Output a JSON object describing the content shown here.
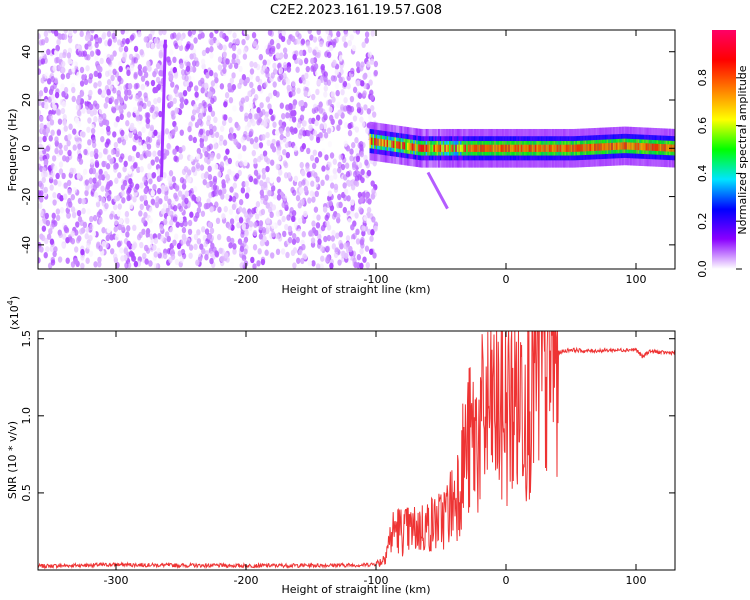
{
  "chart_data": [
    {
      "type": "heatmap",
      "title": "C2E2.2023.161.19.57.G08",
      "xlabel": "Height of straight line (km)",
      "ylabel": "Frequency (Hz)",
      "xlim": [
        -360,
        130
      ],
      "ylim": [
        -50,
        49
      ],
      "xticks": [
        -300,
        -200,
        -100,
        0,
        100
      ],
      "yticks": [
        -40,
        -20,
        0,
        20,
        40
      ],
      "colorbar": {
        "label": "Normalized spectral amplitude",
        "range": [
          0.0,
          1.0
        ],
        "ticks": [
          "0.0",
          "0.2",
          "0.4",
          "0.6",
          "0.8"
        ],
        "colors": [
          "#ffffff",
          "#8a00ff",
          "#0000ff",
          "#00e5ff",
          "#00ff00",
          "#ffff00",
          "#ff7f00",
          "#ff0000",
          "#ff0066"
        ]
      },
      "regions": [
        {
          "name": "noise",
          "x": [
            -360,
            -100
          ],
          "freq": [
            -49,
            49
          ],
          "max_amplitude": 0.1
        },
        {
          "name": "signal",
          "x": [
            -105,
            130
          ],
          "freq_center": [
            3,
            0,
            0,
            0,
            0,
            1,
            0
          ],
          "max_amplitude": 1.0
        },
        {
          "name": "diagonal streak",
          "x": [
            -265,
            -262
          ],
          "freq": [
            -12,
            45
          ],
          "max_amplitude": 0.1
        },
        {
          "name": "tail",
          "x": [
            -60,
            -45
          ],
          "freq": [
            -10,
            -25
          ],
          "max_amplitude": 0.1
        }
      ]
    },
    {
      "type": "line",
      "xlabel": "Height of straight line (km)",
      "ylabel": "SNR (10 * v/v)",
      "multiplier": "(x10",
      "multiplier_exp": "4",
      "multiplier_close": ")",
      "xlim": [
        -360,
        130
      ],
      "ylim": [
        0,
        15500
      ],
      "xticks": [
        -300,
        -200,
        -100,
        0,
        100
      ],
      "yticks": [
        0.5,
        1.0,
        1.5
      ],
      "ytick_labels": [
        "0.5",
        "1.0",
        "1.5"
      ],
      "series": [
        {
          "color": "#ee3333",
          "x": [
            -360,
            -300,
            -250,
            -200,
            -150,
            -110,
            -100,
            -95,
            -90,
            -85,
            -80,
            -70,
            -60,
            -50,
            -40,
            -30,
            -20,
            -15,
            -10,
            -5,
            0,
            10,
            20,
            30,
            40,
            50,
            60,
            80,
            100,
            105,
            110,
            120,
            130
          ],
          "y": [
            250,
            350,
            300,
            280,
            300,
            320,
            400,
            600,
            1800,
            2800,
            2500,
            2600,
            2900,
            3200,
            4500,
            8000,
            9000,
            10000,
            10500,
            10200,
            10500,
            11500,
            12800,
            13600,
            14100,
            14300,
            14200,
            14250,
            14300,
            13800,
            14200,
            14100,
            14100
          ]
        }
      ]
    }
  ]
}
